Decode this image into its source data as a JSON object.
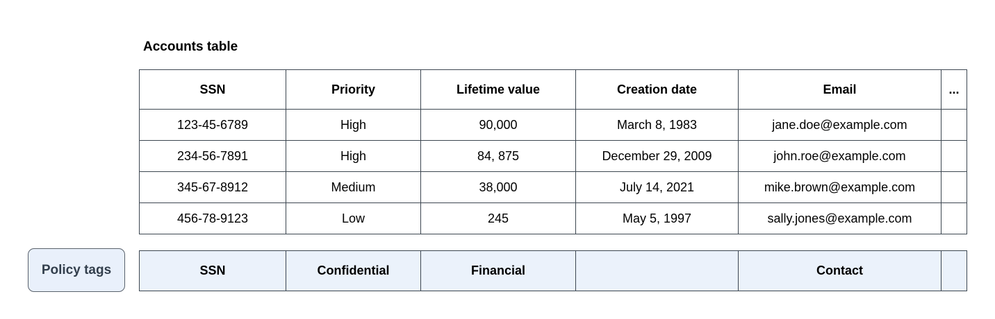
{
  "title": "Accounts table",
  "table": {
    "columns": [
      "SSN",
      "Priority",
      "Lifetime value",
      "Creation date",
      "Email",
      "..."
    ],
    "rows": [
      [
        "123-45-6789",
        "High",
        "90,000",
        "March 8, 1983",
        "jane.doe@example.com",
        ""
      ],
      [
        "234-56-7891",
        "High",
        "84, 875",
        "December 29, 2009",
        "john.roe@example.com",
        ""
      ],
      [
        "345-67-8912",
        "Medium",
        "38,000",
        "July 14, 2021",
        "mike.brown@example.com",
        ""
      ],
      [
        "456-78-9123",
        "Low",
        "245",
        "May 5, 1997",
        "sally.jones@example.com",
        ""
      ]
    ]
  },
  "policy_tags": {
    "button_label": "Policy tags",
    "tags": [
      "SSN",
      "Confidential",
      "Financial",
      "",
      "Contact",
      ""
    ]
  },
  "colors": {
    "tag_fill": "#ebf2fb",
    "grid_border": "#3c4650",
    "button_fill": "#e9f0fb",
    "button_border": "#59616b",
    "button_text": "#333f4d",
    "text": "#000000",
    "background": "#ffffff"
  }
}
